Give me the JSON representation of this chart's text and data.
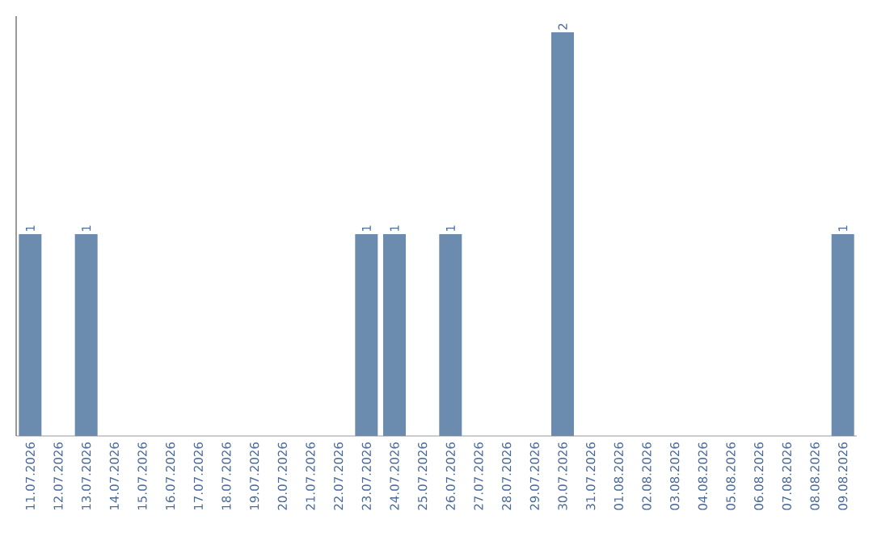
{
  "chart_data": {
    "type": "bar",
    "categories": [
      "11.07.2026",
      "12.07.2026",
      "13.07.2026",
      "14.07.2026",
      "15.07.2026",
      "16.07.2026",
      "17.07.2026",
      "18.07.2026",
      "19.07.2026",
      "20.07.2026",
      "21.07.2026",
      "22.07.2026",
      "23.07.2026",
      "24.07.2026",
      "25.07.2026",
      "26.07.2026",
      "27.07.2026",
      "28.07.2026",
      "29.07.2026",
      "30.07.2026",
      "31.07.2026",
      "01.08.2026",
      "02.08.2026",
      "03.08.2026",
      "04.08.2026",
      "05.08.2026",
      "06.08.2026",
      "07.08.2026",
      "08.08.2026",
      "09.08.2026"
    ],
    "values": [
      1,
      0,
      1,
      0,
      0,
      0,
      0,
      0,
      0,
      0,
      0,
      0,
      1,
      1,
      0,
      1,
      0,
      0,
      0,
      2,
      0,
      0,
      0,
      0,
      0,
      0,
      0,
      0,
      0,
      1
    ],
    "value_labels": [
      "1",
      null,
      "1",
      null,
      null,
      null,
      null,
      null,
      null,
      null,
      null,
      null,
      "1",
      "1",
      null,
      "1",
      null,
      null,
      null,
      "2",
      null,
      null,
      null,
      null,
      null,
      null,
      null,
      null,
      null,
      "1"
    ],
    "color": "#6b8cae"
  }
}
